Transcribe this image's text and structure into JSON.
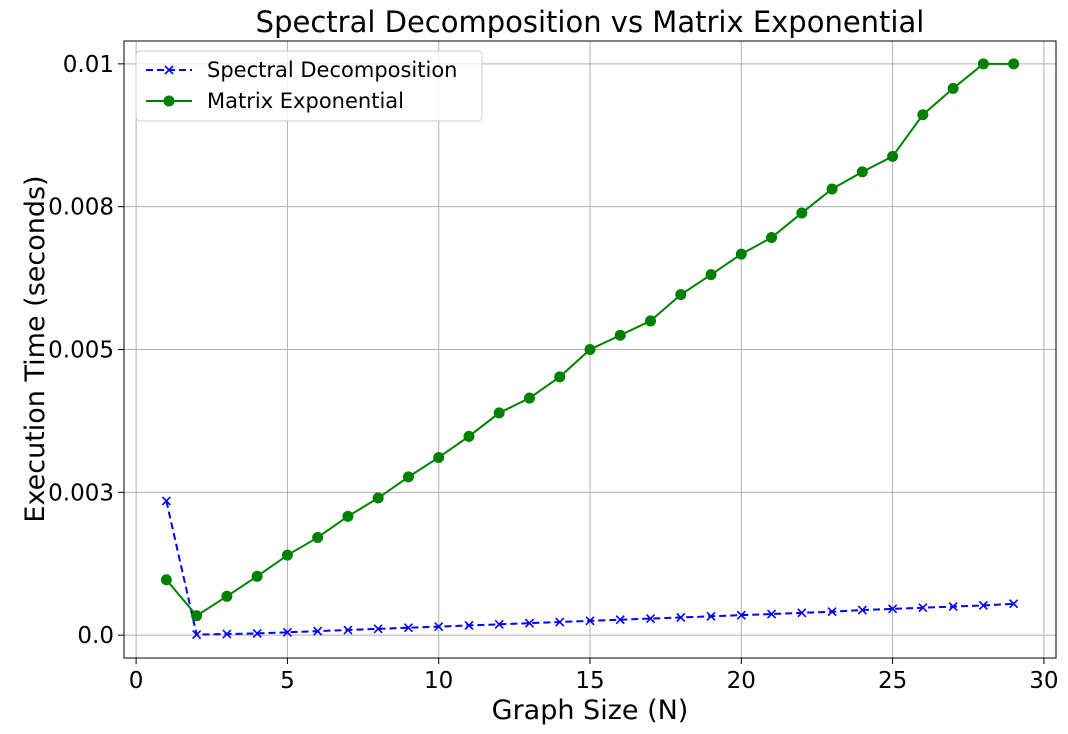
{
  "chart_data": {
    "type": "line",
    "title": "Spectral Decomposition vs Matrix Exponential",
    "xlabel": "Graph Size (N)",
    "ylabel": "Execution Time (seconds)",
    "xlim": [
      -0.4,
      30.4
    ],
    "ylim": [
      -0.0004,
      0.0104
    ],
    "xticks": [
      0,
      5,
      10,
      15,
      20,
      25,
      30
    ],
    "xtick_labels": [
      "0",
      "5",
      "10",
      "15",
      "20",
      "25",
      "30"
    ],
    "yticks": [
      0.0,
      0.0025,
      0.005,
      0.0075,
      0.01
    ],
    "ytick_labels": [
      "0.0",
      "0.003",
      "0.005",
      "0.008",
      "0.01"
    ],
    "grid": true,
    "legend_position": "top-left",
    "x": [
      1,
      2,
      3,
      4,
      5,
      6,
      7,
      8,
      9,
      10,
      11,
      12,
      13,
      14,
      15,
      16,
      17,
      18,
      19,
      20,
      21,
      22,
      23,
      24,
      25,
      26,
      27,
      28,
      29
    ],
    "series": [
      {
        "name": "Spectral Decomposition",
        "color": "#0000ff",
        "line_style": "dashed",
        "marker": "x",
        "values": [
          0.00235,
          1e-05,
          2e-05,
          3e-05,
          5e-05,
          7e-05,
          9e-05,
          0.00011,
          0.00013,
          0.00015,
          0.00017,
          0.00019,
          0.00021,
          0.00023,
          0.00025,
          0.00027,
          0.00029,
          0.00031,
          0.00033,
          0.00035,
          0.00037,
          0.00039,
          0.00041,
          0.00044,
          0.00046,
          0.00048,
          0.0005,
          0.00052,
          0.00055
        ]
      },
      {
        "name": "Matrix Exponential",
        "color": "#008000",
        "line_style": "solid",
        "marker": "circle",
        "values": [
          0.00097,
          0.00034,
          0.00068,
          0.00103,
          0.0014,
          0.00171,
          0.00208,
          0.0024,
          0.00277,
          0.00311,
          0.00348,
          0.00389,
          0.00415,
          0.00452,
          0.005,
          0.00525,
          0.0055,
          0.00596,
          0.00631,
          0.00667,
          0.00696,
          0.00739,
          0.00781,
          0.00811,
          0.00838,
          0.00911,
          0.00957,
          0.01,
          0.01
        ]
      }
    ]
  }
}
